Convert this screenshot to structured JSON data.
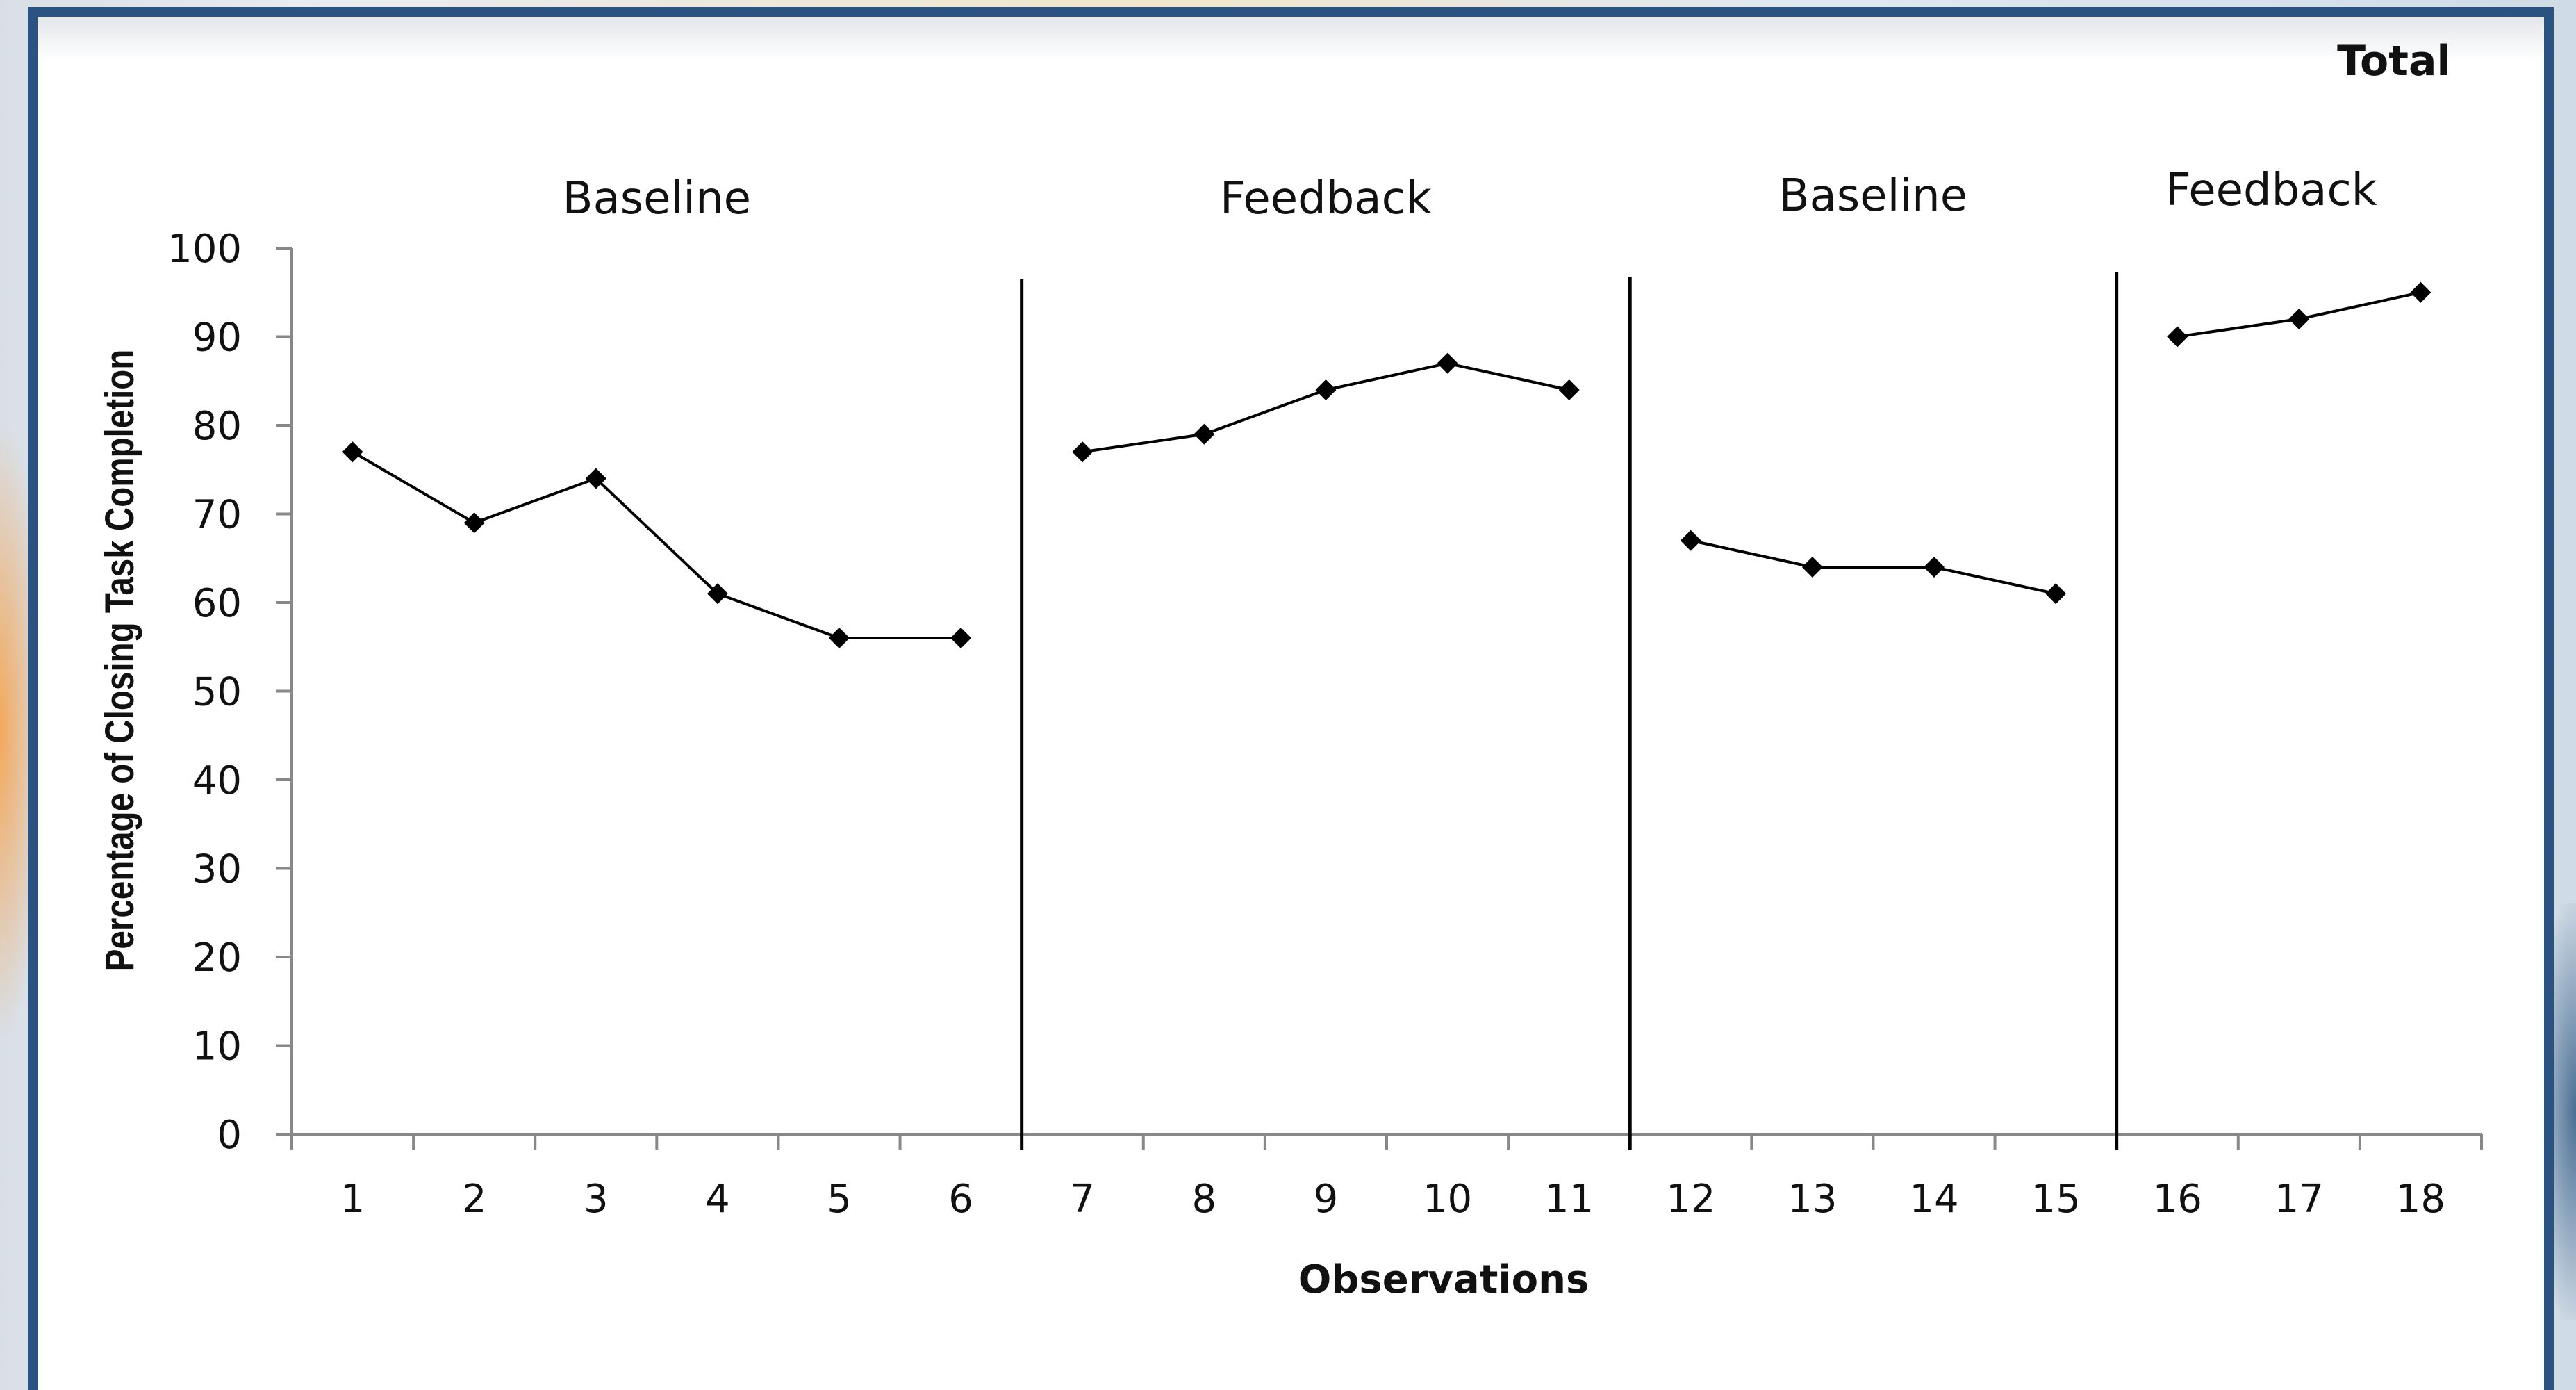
{
  "chart_data": {
    "type": "line",
    "title": "Total",
    "xlabel": "Observations",
    "ylabel": "Percentage of Closing Task Completion",
    "ylim": [
      0,
      100
    ],
    "yticks": [
      0,
      10,
      20,
      30,
      40,
      50,
      60,
      70,
      80,
      90,
      100
    ],
    "xlim": [
      1,
      18
    ],
    "xticks": [
      1,
      2,
      3,
      4,
      5,
      6,
      7,
      8,
      9,
      10,
      11,
      12,
      13,
      14,
      15,
      16,
      17,
      18
    ],
    "legend": "none",
    "grid": false,
    "marker": "diamond",
    "color": "#000000",
    "phase_change_lines": [
      6.5,
      11.5,
      15.5
    ],
    "phases": [
      {
        "label": "Baseline",
        "x": [
          1,
          2,
          3,
          4,
          5,
          6
        ],
        "values": [
          77,
          69,
          74,
          61,
          56,
          56
        ]
      },
      {
        "label": "Feedback",
        "x": [
          7,
          8,
          9,
          10,
          11
        ],
        "values": [
          77,
          79,
          84,
          87,
          84
        ]
      },
      {
        "label": "Baseline",
        "x": [
          12,
          13,
          14,
          15
        ],
        "values": [
          67,
          64,
          64,
          61
        ]
      },
      {
        "label": "Feedback",
        "x": [
          16,
          17,
          18
        ],
        "values": [
          90,
          92,
          95
        ]
      }
    ]
  }
}
